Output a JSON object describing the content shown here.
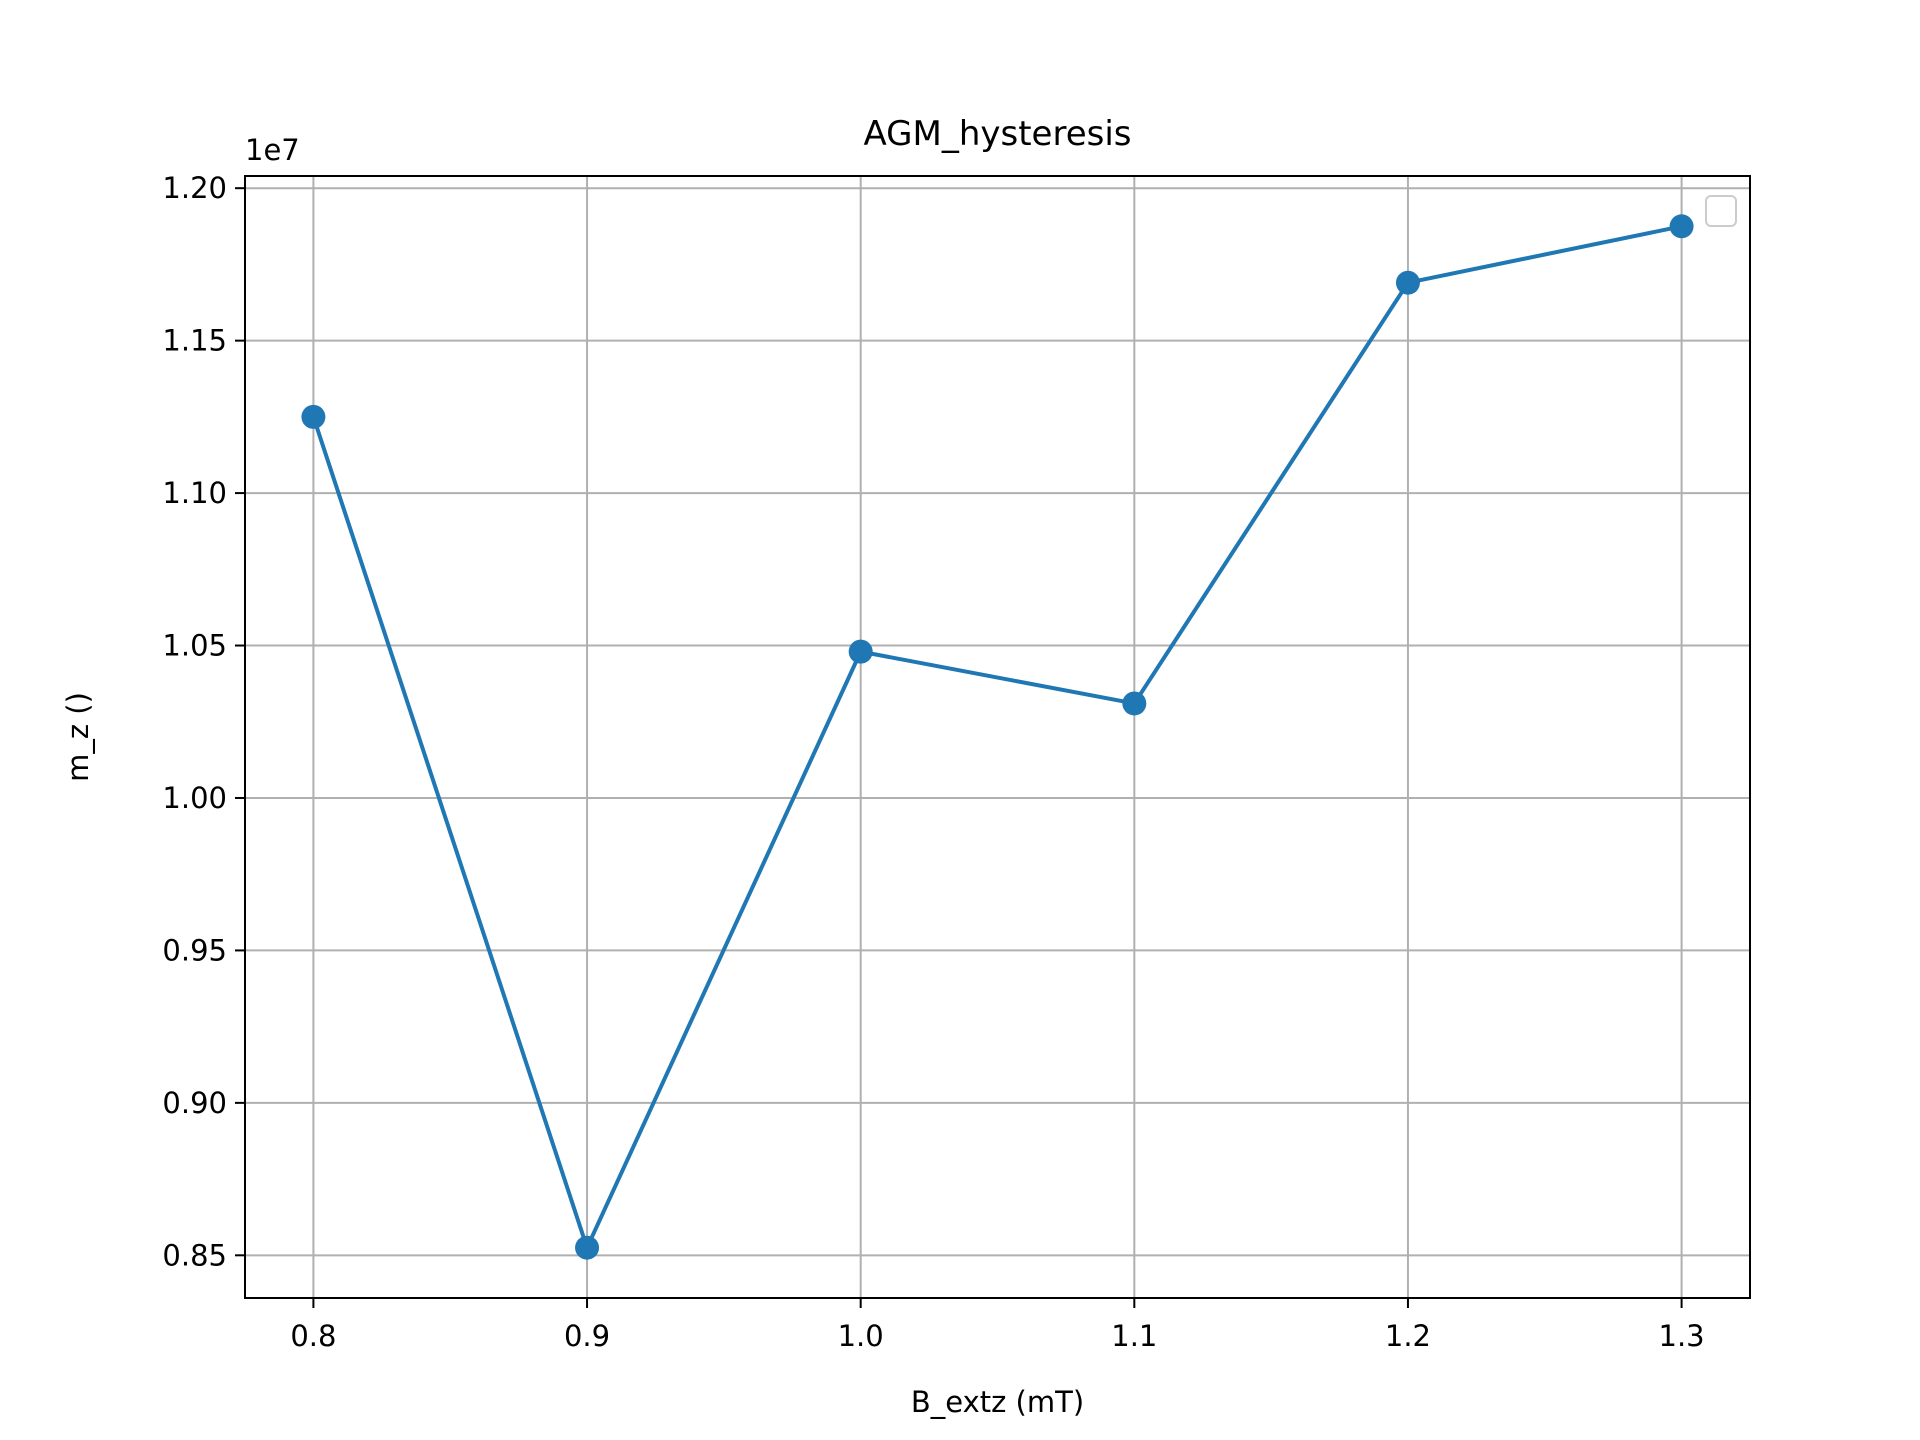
{
  "chart_data": {
    "type": "line",
    "title": "AGM_hysteresis",
    "xlabel": "B_extz (mT)",
    "ylabel": "m_z ()",
    "y_offset_label": "1e7",
    "y_scale_factor": 10000000,
    "x": [
      0.8,
      0.9,
      1.0,
      1.1,
      1.2,
      1.3
    ],
    "series": [
      {
        "values": [
          11250000,
          8525000,
          10480000,
          10310000,
          11690000,
          11875000
        ],
        "color": "#1f77b4",
        "marker": "circle"
      }
    ],
    "xlim": [
      0.775,
      1.325
    ],
    "ylim": [
      8360000,
      12040000
    ],
    "xticks": [
      0.8,
      0.9,
      1.0,
      1.1,
      1.2,
      1.3
    ],
    "xtick_labels": [
      "0.8",
      "0.9",
      "1.0",
      "1.1",
      "1.2",
      "1.3"
    ],
    "yticks": [
      8500000,
      9000000,
      9500000,
      10000000,
      10500000,
      11000000,
      11500000,
      12000000
    ],
    "ytick_labels": [
      "0.85",
      "0.90",
      "0.95",
      "1.00",
      "1.05",
      "1.10",
      "1.15",
      "1.20"
    ],
    "grid": true,
    "legend": "upper right (empty)"
  }
}
